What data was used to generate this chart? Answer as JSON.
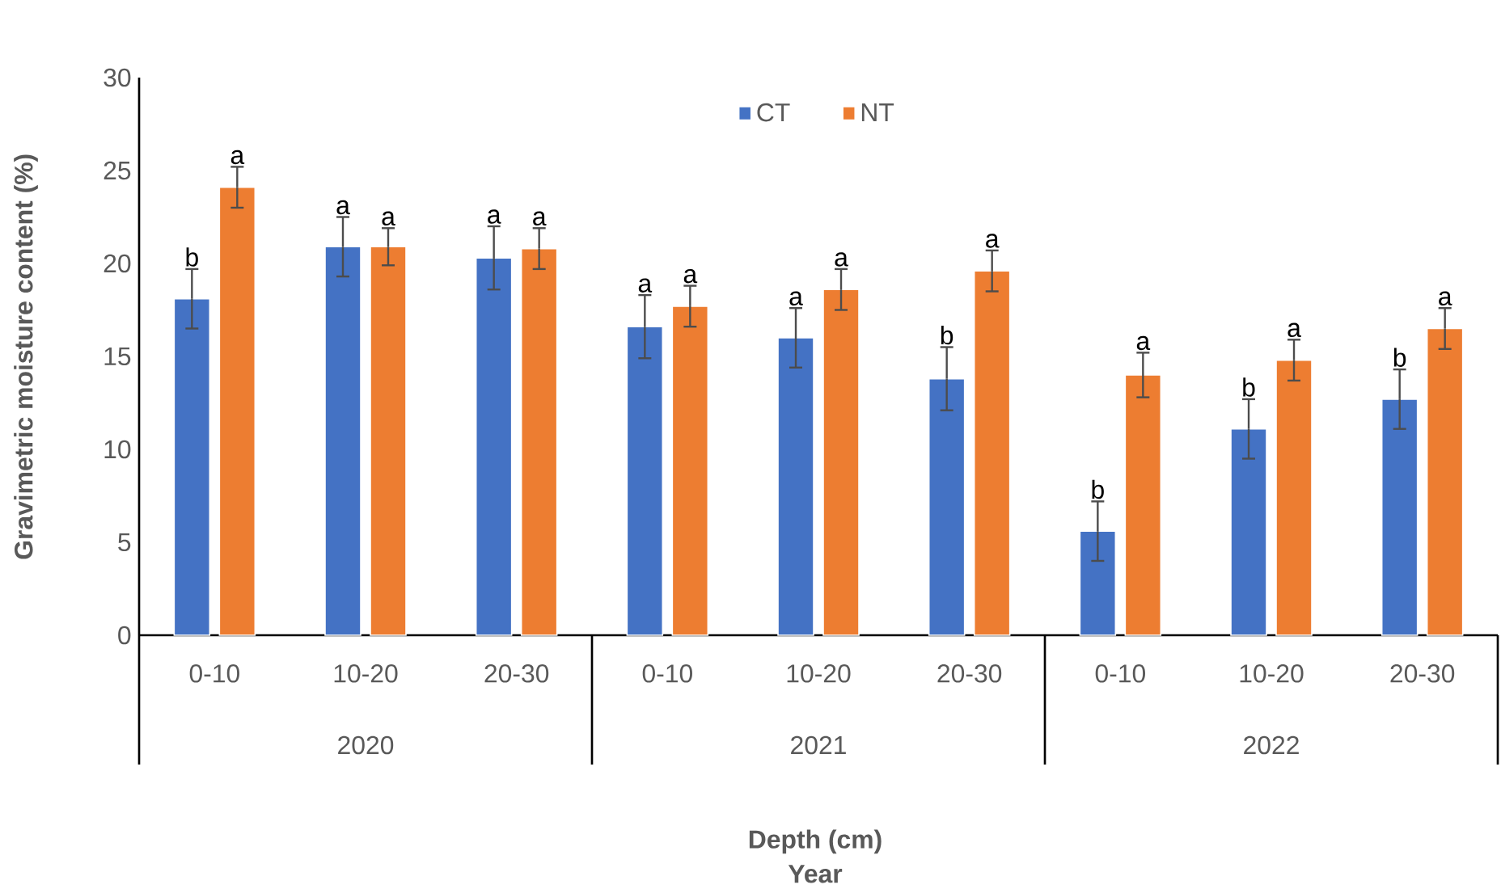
{
  "chart_data": {
    "type": "bar",
    "ylabel": "Gravimetric moisture content (%)",
    "categories": [
      "0-10",
      "10-20",
      "20-30",
      "0-10",
      "10-20",
      "20-30",
      "0-10",
      "10-20",
      "20-30"
    ],
    "annotations": [
      "2020",
      "2021",
      "2022",
      "Depth (cm)",
      "Year"
    ],
    "series": [
      {
        "name": "CT",
        "color": "#4472c4",
        "values": [
          18.1,
          20.9,
          20.3,
          16.6,
          16.0,
          13.8,
          5.6,
          11.1,
          12.7
        ],
        "errors": [
          1.6,
          1.6,
          1.7,
          1.7,
          1.6,
          1.7,
          1.6,
          1.6,
          1.6
        ],
        "value_labels": [
          "b",
          "a",
          "a",
          "a",
          "a",
          "b",
          "b",
          "b",
          "b"
        ]
      },
      {
        "name": "NT",
        "color": "#ed7d31",
        "values": [
          24.1,
          20.9,
          20.8,
          17.7,
          18.6,
          19.6,
          14.0,
          14.8,
          16.5
        ],
        "errors": [
          1.1,
          1.0,
          1.1,
          1.1,
          1.1,
          1.1,
          1.2,
          1.1,
          1.1
        ],
        "value_labels": [
          "a",
          "a",
          "a",
          "a",
          "a",
          "a",
          "a",
          "a",
          "a"
        ]
      }
    ],
    "ylim": [
      0,
      30
    ],
    "yticks": [
      0,
      5,
      10,
      15,
      20,
      25,
      30
    ],
    "grid": false,
    "legend": "top"
  }
}
